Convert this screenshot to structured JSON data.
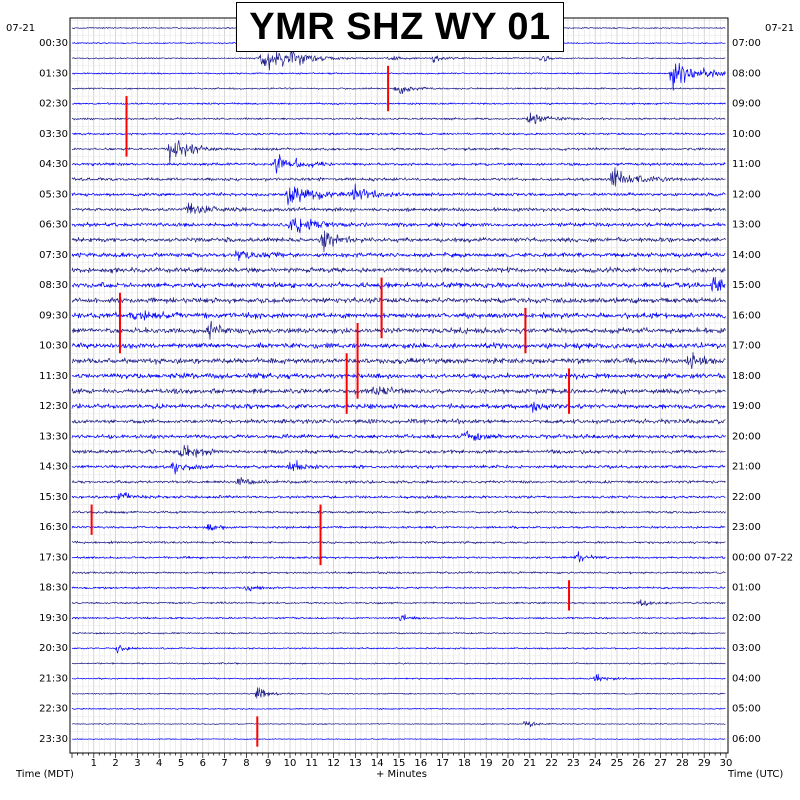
{
  "chart_data": {
    "type": "line",
    "title": "YMR SHZ WY 01",
    "left_date": "07-21",
    "right_date": "07-21",
    "left_axis_label": "Time (MDT)",
    "right_axis_label": "Time (UTC)",
    "x_axis_label": "+ Minutes",
    "xlim": [
      0,
      30
    ],
    "x_ticks": [
      "1",
      "2",
      "3",
      "4",
      "5",
      "6",
      "7",
      "8",
      "9",
      "10",
      "11",
      "12",
      "13",
      "14",
      "15",
      "16",
      "17",
      "18",
      "19",
      "20",
      "21",
      "22",
      "23",
      "24",
      "25",
      "26",
      "27",
      "28",
      "29",
      "30"
    ],
    "left_hour_labels": [
      "00:30",
      "01:30",
      "02:30",
      "03:30",
      "04:30",
      "05:30",
      "06:30",
      "07:30",
      "08:30",
      "09:30",
      "10:30",
      "11:30",
      "12:30",
      "13:30",
      "14:30",
      "15:30",
      "16:30",
      "17:30",
      "18:30",
      "19:30",
      "20:30",
      "21:30",
      "22:30",
      "23:30"
    ],
    "right_hour_labels": [
      "07:00",
      "08:00",
      "09:00",
      "10:00",
      "11:00",
      "12:00",
      "13:00",
      "14:00",
      "15:00",
      "16:00",
      "17:00",
      "18:00",
      "19:00",
      "20:00",
      "21:00",
      "22:00",
      "23:00",
      "00:00 07-22",
      "01:00",
      "02:00",
      "03:00",
      "04:00",
      "05:00",
      "06:00"
    ],
    "trace_count": 48,
    "trace_colors": [
      "#1d1d8a",
      "#0000ff"
    ],
    "clip_color": "#ff0000",
    "grid": true,
    "events": [
      {
        "trace": 2,
        "minute": 8.7,
        "amplitude": 1.6,
        "width": 1.2
      },
      {
        "trace": 2,
        "minute": 10.0,
        "amplitude": 0.7,
        "width": 0.8
      },
      {
        "trace": 2,
        "minute": 14.6,
        "amplitude": 0.5,
        "width": 0.4
      },
      {
        "trace": 2,
        "minute": 16.6,
        "amplitude": 0.5,
        "width": 0.4
      },
      {
        "trace": 2,
        "minute": 21.5,
        "amplitude": 0.4,
        "width": 0.4
      },
      {
        "trace": 3,
        "minute": 27.5,
        "amplitude": 1.8,
        "width": 1.2
      },
      {
        "trace": 4,
        "minute": 14.9,
        "amplitude": 0.8,
        "width": 0.5
      },
      {
        "trace": 6,
        "minute": 21.0,
        "amplitude": 0.8,
        "width": 0.8
      },
      {
        "trace": 8,
        "minute": 4.5,
        "amplitude": 1.5,
        "width": 0.8
      },
      {
        "trace": 9,
        "minute": 9.3,
        "amplitude": 1.2,
        "width": 0.8
      },
      {
        "trace": 10,
        "minute": 24.8,
        "amplitude": 1.4,
        "width": 1.0
      },
      {
        "trace": 11,
        "minute": 9.9,
        "amplitude": 1.3,
        "width": 1.0
      },
      {
        "trace": 11,
        "minute": 13.0,
        "amplitude": 1.1,
        "width": 0.6
      },
      {
        "trace": 12,
        "minute": 5.2,
        "amplitude": 1.1,
        "width": 0.8
      },
      {
        "trace": 13,
        "minute": 10.0,
        "amplitude": 1.1,
        "width": 0.8
      },
      {
        "trace": 14,
        "minute": 11.5,
        "amplitude": 1.2,
        "width": 0.6
      },
      {
        "trace": 15,
        "minute": 7.5,
        "amplitude": 0.8,
        "width": 0.6
      },
      {
        "trace": 17,
        "minute": 29.4,
        "amplitude": 0.8,
        "width": 0.6
      },
      {
        "trace": 19,
        "minute": 2.8,
        "amplitude": 0.8,
        "width": 0.6
      },
      {
        "trace": 20,
        "minute": 6.3,
        "amplitude": 0.8,
        "width": 0.6
      },
      {
        "trace": 22,
        "minute": 28.3,
        "amplitude": 0.9,
        "width": 0.6
      },
      {
        "trace": 24,
        "minute": 13.9,
        "amplitude": 0.8,
        "width": 0.5
      },
      {
        "trace": 25,
        "minute": 21.2,
        "amplitude": 0.7,
        "width": 0.5
      },
      {
        "trace": 27,
        "minute": 18.0,
        "amplitude": 0.9,
        "width": 0.5
      },
      {
        "trace": 28,
        "minute": 5.0,
        "amplitude": 1.0,
        "width": 0.8
      },
      {
        "trace": 29,
        "minute": 4.6,
        "amplitude": 1.0,
        "width": 0.7
      },
      {
        "trace": 29,
        "minute": 10.0,
        "amplitude": 0.8,
        "width": 0.5
      },
      {
        "trace": 30,
        "minute": 7.5,
        "amplitude": 0.6,
        "width": 0.5
      },
      {
        "trace": 31,
        "minute": 2.2,
        "amplitude": 0.6,
        "width": 0.5
      },
      {
        "trace": 33,
        "minute": 6.2,
        "amplitude": 0.5,
        "width": 0.5
      },
      {
        "trace": 35,
        "minute": 23.2,
        "amplitude": 0.6,
        "width": 0.5
      },
      {
        "trace": 37,
        "minute": 8.0,
        "amplitude": 0.6,
        "width": 0.4
      },
      {
        "trace": 38,
        "minute": 26.0,
        "amplitude": 0.6,
        "width": 0.5
      },
      {
        "trace": 39,
        "minute": 15.0,
        "amplitude": 0.5,
        "width": 0.4
      },
      {
        "trace": 41,
        "minute": 2.1,
        "amplitude": 0.5,
        "width": 0.4
      },
      {
        "trace": 43,
        "minute": 24.0,
        "amplitude": 0.6,
        "width": 0.5
      },
      {
        "trace": 44,
        "minute": 8.5,
        "amplitude": 0.9,
        "width": 0.4
      },
      {
        "trace": 46,
        "minute": 20.8,
        "amplitude": 0.5,
        "width": 0.4
      }
    ],
    "clip_marks": [
      {
        "trace": 3,
        "minute": 14.5,
        "span_traces": 3
      },
      {
        "trace": 5,
        "minute": 2.5,
        "span_traces": 4
      },
      {
        "trace": 18,
        "minute": 2.2,
        "span_traces": 4
      },
      {
        "trace": 17,
        "minute": 14.2,
        "span_traces": 4
      },
      {
        "trace": 20,
        "minute": 13.1,
        "span_traces": 5
      },
      {
        "trace": 19,
        "minute": 20.8,
        "span_traces": 3
      },
      {
        "trace": 22,
        "minute": 12.6,
        "span_traces": 4
      },
      {
        "trace": 23,
        "minute": 22.8,
        "span_traces": 3
      },
      {
        "trace": 32,
        "minute": 0.9,
        "span_traces": 2
      },
      {
        "trace": 32,
        "minute": 11.4,
        "span_traces": 4
      },
      {
        "trace": 37,
        "minute": 22.8,
        "span_traces": 2
      },
      {
        "trace": 46,
        "minute": 8.5,
        "span_traces": 2
      }
    ]
  }
}
